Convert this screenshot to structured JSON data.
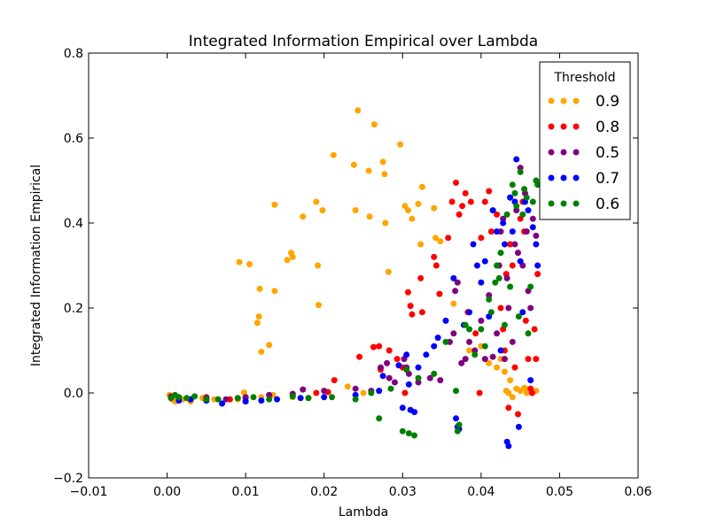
{
  "chart_data": {
    "type": "scatter",
    "title": "Integrated Information Empirical over Lambda",
    "xlabel": "Lambda",
    "ylabel": "Integrated Information Empirical",
    "xlim": [
      -0.01,
      0.06
    ],
    "ylim": [
      -0.2,
      0.8
    ],
    "xticks": [
      -0.01,
      0.0,
      0.01,
      0.02,
      0.03,
      0.04,
      0.05,
      0.06
    ],
    "yticks": [
      -0.2,
      0.0,
      0.2,
      0.4,
      0.6,
      0.8
    ],
    "xtick_labels": [
      "−0.01",
      "0.00",
      "0.01",
      "0.02",
      "0.03",
      "0.04",
      "0.05",
      "0.06"
    ],
    "ytick_labels": [
      "−0.2",
      "0.0",
      "0.2",
      "0.4",
      "0.6",
      "0.8"
    ],
    "grid": false,
    "legend": {
      "title": "Threshold",
      "placement": "top-right",
      "entries": [
        "0.9",
        "0.8",
        "0.5",
        "0.7",
        "0.6"
      ]
    },
    "series": [
      {
        "name": "0.9",
        "color": "#FFA500",
        "points": [
          [
            0.0003,
            -0.005
          ],
          [
            0.0006,
            -0.015
          ],
          [
            0.001,
            -0.02
          ],
          [
            0.0015,
            -0.01
          ],
          [
            0.002,
            -0.015
          ],
          [
            0.003,
            -0.02
          ],
          [
            0.0045,
            -0.012
          ],
          [
            0.006,
            -0.015
          ],
          [
            0.009,
            -0.015
          ],
          [
            0.0098,
            0.001
          ],
          [
            0.012,
            -0.01
          ],
          [
            0.0135,
            -0.005
          ],
          [
            0.016,
            -0.01
          ],
          [
            0.018,
            -0.012
          ],
          [
            0.02,
            -0.01
          ],
          [
            0.023,
            0.015
          ],
          [
            0.025,
            0.0
          ],
          [
            0.0092,
            0.308
          ],
          [
            0.0105,
            0.303
          ],
          [
            0.0115,
            0.165
          ],
          [
            0.0117,
            0.18
          ],
          [
            0.0118,
            0.245
          ],
          [
            0.012,
            0.097
          ],
          [
            0.013,
            0.113
          ],
          [
            0.0137,
            0.443
          ],
          [
            0.0137,
            0.24
          ],
          [
            0.0153,
            0.313
          ],
          [
            0.0158,
            0.33
          ],
          [
            0.016,
            0.32
          ],
          [
            0.0173,
            0.415
          ],
          [
            0.019,
            0.45
          ],
          [
            0.0192,
            0.3
          ],
          [
            0.0193,
            0.207
          ],
          [
            0.0198,
            0.43
          ],
          [
            0.0212,
            0.56
          ],
          [
            0.0238,
            0.537
          ],
          [
            0.024,
            0.43
          ],
          [
            0.0243,
            0.665
          ],
          [
            0.0257,
            0.523
          ],
          [
            0.0258,
            0.415
          ],
          [
            0.0264,
            0.632
          ],
          [
            0.0275,
            0.544
          ],
          [
            0.0277,
            0.515
          ],
          [
            0.0278,
            0.4
          ],
          [
            0.0282,
            0.285
          ],
          [
            0.0297,
            0.585
          ],
          [
            0.0303,
            0.44
          ],
          [
            0.0307,
            0.43
          ],
          [
            0.0312,
            0.41
          ],
          [
            0.032,
            0.445
          ],
          [
            0.0323,
            0.35
          ],
          [
            0.0325,
            0.485
          ],
          [
            0.034,
            0.435
          ],
          [
            0.0342,
            0.365
          ],
          [
            0.0348,
            0.357
          ],
          [
            0.0365,
            0.21
          ],
          [
            0.0385,
            0.1
          ],
          [
            0.04,
            0.11
          ],
          [
            0.041,
            0.07
          ],
          [
            0.042,
            0.06
          ],
          [
            0.0425,
            0.08
          ],
          [
            0.043,
            0.05
          ],
          [
            0.0432,
            0.005
          ],
          [
            0.0435,
            0.0
          ],
          [
            0.0437,
            0.03
          ],
          [
            0.044,
            -0.01
          ],
          [
            0.0445,
            0.01
          ],
          [
            0.045,
            0.005
          ],
          [
            0.0455,
            0.012
          ],
          [
            0.0458,
            0.0
          ],
          [
            0.046,
            0.008
          ],
          [
            0.0465,
            0.002
          ],
          [
            0.047,
            0.005
          ]
        ]
      },
      {
        "name": "0.8",
        "color": "#FF0000",
        "points": [
          [
            0.0005,
            -0.008
          ],
          [
            0.0015,
            -0.012
          ],
          [
            0.003,
            -0.015
          ],
          [
            0.005,
            -0.01
          ],
          [
            0.008,
            -0.015
          ],
          [
            0.01,
            -0.012
          ],
          [
            0.013,
            -0.005
          ],
          [
            0.016,
            -0.005
          ],
          [
            0.019,
            0.0
          ],
          [
            0.0205,
            0.002
          ],
          [
            0.0213,
            0.03
          ],
          [
            0.0245,
            0.085
          ],
          [
            0.0263,
            0.108
          ],
          [
            0.027,
            0.11
          ],
          [
            0.0272,
            0.055
          ],
          [
            0.0283,
            0.1
          ],
          [
            0.0293,
            0.08
          ],
          [
            0.03,
            0.06
          ],
          [
            0.0303,
            0.0
          ],
          [
            0.0307,
            0.237
          ],
          [
            0.031,
            0.205
          ],
          [
            0.0312,
            0.185
          ],
          [
            0.0323,
            0.27
          ],
          [
            0.0325,
            0.19
          ],
          [
            0.034,
            0.32
          ],
          [
            0.0343,
            0.3
          ],
          [
            0.0347,
            0.233
          ],
          [
            0.0358,
            0.365
          ],
          [
            0.0363,
            0.45
          ],
          [
            0.0368,
            0.495
          ],
          [
            0.0372,
            0.42
          ],
          [
            0.0376,
            0.44
          ],
          [
            0.038,
            0.47
          ],
          [
            0.0383,
            0.19
          ],
          [
            0.0387,
            0.45
          ],
          [
            0.0393,
            0.14
          ],
          [
            0.0398,
            0.0
          ],
          [
            0.04,
            0.365
          ],
          [
            0.0405,
            0.45
          ],
          [
            0.041,
            0.475
          ],
          [
            0.0413,
            0.38
          ],
          [
            0.042,
            0.42
          ],
          [
            0.0425,
            0.2
          ],
          [
            0.0428,
            0.15
          ],
          [
            0.043,
            0.1
          ],
          [
            0.0432,
            0.28
          ],
          [
            0.0435,
            -0.035
          ],
          [
            0.0437,
            0.35
          ],
          [
            0.044,
            0.3
          ],
          [
            0.0443,
            0.06
          ],
          [
            0.0447,
            -0.05
          ],
          [
            0.045,
            0.41
          ],
          [
            0.0453,
            0.45
          ],
          [
            0.0455,
            0.38
          ],
          [
            0.0457,
            0.17
          ],
          [
            0.046,
            0.08
          ],
          [
            0.0463,
            0.01
          ],
          [
            0.0465,
            0.0
          ],
          [
            0.0468,
            0.15
          ],
          [
            0.047,
            0.08
          ],
          [
            0.0472,
            0.28
          ]
        ]
      },
      {
        "name": "0.5",
        "color": "#800080",
        "points": [
          [
            0.0005,
            -0.01
          ],
          [
            0.0015,
            -0.015
          ],
          [
            0.003,
            -0.015
          ],
          [
            0.005,
            -0.012
          ],
          [
            0.0075,
            -0.015
          ],
          [
            0.01,
            -0.01
          ],
          [
            0.013,
            -0.005
          ],
          [
            0.016,
            -0.002
          ],
          [
            0.0173,
            0.008
          ],
          [
            0.02,
            0.005
          ],
          [
            0.024,
            0.01
          ],
          [
            0.026,
            0.005
          ],
          [
            0.0272,
            0.06
          ],
          [
            0.028,
            0.07
          ],
          [
            0.0283,
            0.035
          ],
          [
            0.029,
            0.025
          ],
          [
            0.0302,
            0.08
          ],
          [
            0.0305,
            0.06
          ],
          [
            0.0308,
            0.045
          ],
          [
            0.032,
            0.025
          ],
          [
            0.0335,
            0.035
          ],
          [
            0.0348,
            0.03
          ],
          [
            0.036,
            0.12
          ],
          [
            0.0365,
            0.14
          ],
          [
            0.0367,
            0.24
          ],
          [
            0.037,
            0.26
          ],
          [
            0.0375,
            0.07
          ],
          [
            0.038,
            0.08
          ],
          [
            0.0385,
            0.12
          ],
          [
            0.0392,
            0.1
          ],
          [
            0.04,
            0.17
          ],
          [
            0.0405,
            0.08
          ],
          [
            0.041,
            0.23
          ],
          [
            0.0415,
            0.085
          ],
          [
            0.042,
            0.14
          ],
          [
            0.0423,
            0.3
          ],
          [
            0.0425,
            0.38
          ],
          [
            0.0428,
            0.41
          ],
          [
            0.043,
            0.08
          ],
          [
            0.0433,
            0.27
          ],
          [
            0.0435,
            0.2
          ],
          [
            0.0437,
            0.46
          ],
          [
            0.044,
            0.12
          ],
          [
            0.0443,
            0.35
          ],
          [
            0.0445,
            0.43
          ],
          [
            0.0447,
            0.33
          ],
          [
            0.045,
            0.53
          ],
          [
            0.0453,
            0.3
          ],
          [
            0.0456,
            0.47
          ],
          [
            0.0458,
            0.38
          ],
          [
            0.046,
            0.24
          ],
          [
            0.0463,
            0.2
          ],
          [
            0.0466,
            0.41
          ],
          [
            0.047,
            0.37
          ]
        ]
      },
      {
        "name": "0.7",
        "color": "#0000FF",
        "points": [
          [
            0.0005,
            -0.012
          ],
          [
            0.0015,
            -0.018
          ],
          [
            0.003,
            -0.015
          ],
          [
            0.005,
            -0.018
          ],
          [
            0.007,
            -0.025
          ],
          [
            0.01,
            -0.02
          ],
          [
            0.012,
            -0.018
          ],
          [
            0.014,
            -0.015
          ],
          [
            0.017,
            -0.012
          ],
          [
            0.02,
            -0.01
          ],
          [
            0.024,
            -0.005
          ],
          [
            0.027,
            0.005
          ],
          [
            0.0275,
            0.04
          ],
          [
            0.0295,
            0.065
          ],
          [
            0.03,
            -0.035
          ],
          [
            0.0305,
            0.09
          ],
          [
            0.0308,
            0.02
          ],
          [
            0.031,
            -0.04
          ],
          [
            0.0315,
            -0.045
          ],
          [
            0.032,
            0.06
          ],
          [
            0.033,
            0.09
          ],
          [
            0.034,
            0.11
          ],
          [
            0.0345,
            0.13
          ],
          [
            0.0355,
            0.17
          ],
          [
            0.0365,
            0.27
          ],
          [
            0.0368,
            -0.06
          ],
          [
            0.037,
            -0.08
          ],
          [
            0.0372,
            -0.085
          ],
          [
            0.0378,
            0.16
          ],
          [
            0.0385,
            0.19
          ],
          [
            0.039,
            0.35
          ],
          [
            0.0395,
            0.3
          ],
          [
            0.04,
            0.26
          ],
          [
            0.0405,
            0.31
          ],
          [
            0.041,
            0.18
          ],
          [
            0.0415,
            0.43
          ],
          [
            0.042,
            0.38
          ],
          [
            0.0425,
            0.1
          ],
          [
            0.0428,
            0.4
          ],
          [
            0.043,
            0.35
          ],
          [
            0.0433,
            -0.115
          ],
          [
            0.0435,
            -0.125
          ],
          [
            0.0437,
            0.46
          ],
          [
            0.044,
            0.38
          ],
          [
            0.0443,
            0.45
          ],
          [
            0.0445,
            0.55
          ],
          [
            0.0448,
            -0.08
          ],
          [
            0.045,
            0.31
          ],
          [
            0.0453,
            0.19
          ],
          [
            0.0456,
            0.45
          ],
          [
            0.046,
            0.43
          ],
          [
            0.0463,
            0.03
          ],
          [
            0.0466,
            0.39
          ],
          [
            0.047,
            0.35
          ],
          [
            0.0472,
            0.3
          ]
        ]
      },
      {
        "name": "0.6",
        "color": "#008000",
        "points": [
          [
            0.0005,
            -0.012
          ],
          [
            0.001,
            -0.005
          ],
          [
            0.0015,
            -0.01
          ],
          [
            0.0025,
            -0.012
          ],
          [
            0.0035,
            -0.008
          ],
          [
            0.005,
            -0.015
          ],
          [
            0.0065,
            -0.015
          ],
          [
            0.009,
            -0.012
          ],
          [
            0.011,
            -0.01
          ],
          [
            0.013,
            -0.015
          ],
          [
            0.016,
            -0.008
          ],
          [
            0.018,
            -0.012
          ],
          [
            0.021,
            -0.01
          ],
          [
            0.024,
            -0.015
          ],
          [
            0.026,
            0.0
          ],
          [
            0.027,
            -0.06
          ],
          [
            0.0285,
            0.01
          ],
          [
            0.03,
            -0.09
          ],
          [
            0.0305,
            0.055
          ],
          [
            0.0308,
            -0.095
          ],
          [
            0.0315,
            -0.1
          ],
          [
            0.032,
            0.035
          ],
          [
            0.034,
            0.045
          ],
          [
            0.0355,
            0.12
          ],
          [
            0.0368,
            0.005
          ],
          [
            0.037,
            -0.09
          ],
          [
            0.0372,
            -0.075
          ],
          [
            0.038,
            0.16
          ],
          [
            0.0385,
            0.15
          ],
          [
            0.0392,
            0.09
          ],
          [
            0.04,
            0.15
          ],
          [
            0.0405,
            0.11
          ],
          [
            0.041,
            0.22
          ],
          [
            0.0413,
            0.19
          ],
          [
            0.0418,
            0.26
          ],
          [
            0.042,
            0.3
          ],
          [
            0.0423,
            0.27
          ],
          [
            0.0425,
            0.33
          ],
          [
            0.043,
            0.16
          ],
          [
            0.0433,
            0.42
          ],
          [
            0.0437,
            0.25
          ],
          [
            0.044,
            0.49
          ],
          [
            0.0443,
            0.47
          ],
          [
            0.0445,
            0.44
          ],
          [
            0.0448,
            0.18
          ],
          [
            0.045,
            0.52
          ],
          [
            0.0453,
            0.42
          ],
          [
            0.0455,
            0.48
          ],
          [
            0.0458,
            0.46
          ],
          [
            0.046,
            0.14
          ],
          [
            0.0463,
            0.25
          ],
          [
            0.0466,
            0.45
          ],
          [
            0.047,
            0.5
          ],
          [
            0.0472,
            0.49
          ]
        ]
      }
    ]
  }
}
